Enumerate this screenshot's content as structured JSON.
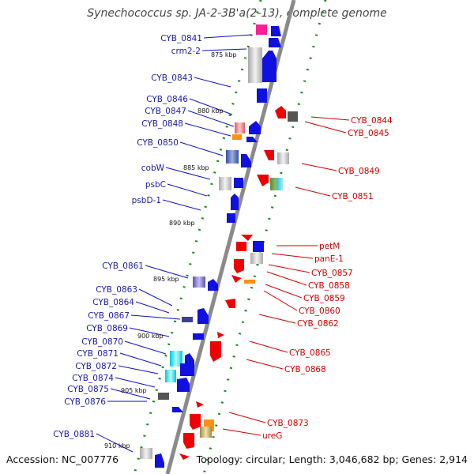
{
  "title": "Synechococcus sp. JA-2-3B'a(2-13), complete genome",
  "footer": {
    "accession": "Accession: NC_007776",
    "summary": "Topology: circular; Length: 3,046,682 bp; Genes: 2,914"
  },
  "colors": {
    "backbone": "#888888",
    "forward_strand": "#1010e0",
    "reverse_strand": "#ee0000",
    "tick_green": "#1a8a1a",
    "label_left": "#1a1aa0",
    "label_right": "#cc0000"
  },
  "kbp_ticks": [
    {
      "label": "875 kbp"
    },
    {
      "label": "880 kbp"
    },
    {
      "label": "885 kbp"
    },
    {
      "label": "890 kbp"
    },
    {
      "label": "895 kbp"
    },
    {
      "label": "900 kbp"
    },
    {
      "label": "905 kbp"
    },
    {
      "label": "910 kbp"
    }
  ],
  "left_genes": [
    {
      "name": "CYB_0841"
    },
    {
      "name": "crm2-2"
    },
    {
      "name": "CYB_0843"
    },
    {
      "name": "CYB_0846"
    },
    {
      "name": "CYB_0847"
    },
    {
      "name": "CYB_0848"
    },
    {
      "name": "CYB_0850"
    },
    {
      "name": "cobW"
    },
    {
      "name": "psbC"
    },
    {
      "name": "psbD-1"
    },
    {
      "name": "CYB_0861"
    },
    {
      "name": "CYB_0863"
    },
    {
      "name": "CYB_0864"
    },
    {
      "name": "CYB_0867"
    },
    {
      "name": "CYB_0869"
    },
    {
      "name": "CYB_0870"
    },
    {
      "name": "CYB_0871"
    },
    {
      "name": "CYB_0872"
    },
    {
      "name": "CYB_0874"
    },
    {
      "name": "CYB_0875"
    },
    {
      "name": "CYB_0876"
    },
    {
      "name": "CYB_0881"
    }
  ],
  "right_genes": [
    {
      "name": "CYB_0844"
    },
    {
      "name": "CYB_0845"
    },
    {
      "name": "CYB_0849"
    },
    {
      "name": "CYB_0851"
    },
    {
      "name": "petM"
    },
    {
      "name": "panE-1"
    },
    {
      "name": "CYB_0857"
    },
    {
      "name": "CYB_0858"
    },
    {
      "name": "CYB_0859"
    },
    {
      "name": "CYB_0860"
    },
    {
      "name": "CYB_0862"
    },
    {
      "name": "CYB_0865"
    },
    {
      "name": "CYB_0868"
    },
    {
      "name": "CYB_0873"
    },
    {
      "name": "ureG"
    }
  ]
}
